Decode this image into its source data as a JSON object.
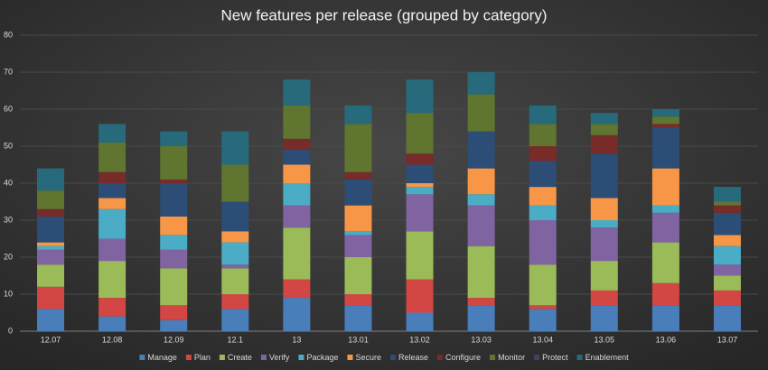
{
  "chart_data": {
    "type": "stacked_bar",
    "title": "New features per release (grouped by category)",
    "categories": [
      "12.07",
      "12.08",
      "12.09",
      "12.1",
      "13",
      "13.01",
      "13.02",
      "13.03",
      "13.04",
      "13.05",
      "13.06",
      "13.07"
    ],
    "series": [
      {
        "name": "Manage",
        "color": "#4a7ebb",
        "values": [
          6,
          4,
          3,
          6,
          9,
          7,
          5,
          7,
          6,
          7,
          7,
          7
        ]
      },
      {
        "name": "Plan",
        "color": "#d24643",
        "values": [
          6,
          5,
          4,
          4,
          5,
          3,
          9,
          2,
          1,
          4,
          6,
          4
        ]
      },
      {
        "name": "Create",
        "color": "#9bbb59",
        "values": [
          6,
          10,
          10,
          7,
          14,
          10,
          13,
          14,
          11,
          8,
          11,
          4
        ]
      },
      {
        "name": "Verify",
        "color": "#8064a2",
        "values": [
          4,
          6,
          5,
          1,
          6,
          6,
          10,
          11,
          12,
          9,
          8,
          3
        ]
      },
      {
        "name": "Package",
        "color": "#4bacc6",
        "values": [
          1,
          8,
          4,
          6,
          6,
          1,
          2,
          3,
          4,
          2,
          2,
          5
        ]
      },
      {
        "name": "Secure",
        "color": "#f79646",
        "values": [
          1,
          3,
          5,
          3,
          5,
          7,
          1,
          7,
          5,
          6,
          10,
          3
        ]
      },
      {
        "name": "Release",
        "color": "#2c4d75",
        "values": [
          7,
          4,
          9,
          8,
          4,
          7,
          5,
          10,
          7,
          12,
          11,
          6
        ]
      },
      {
        "name": "Configure",
        "color": "#772c2a",
        "values": [
          2,
          3,
          1,
          0,
          3,
          2,
          3,
          0,
          4,
          5,
          1,
          2
        ]
      },
      {
        "name": "Monitor",
        "color": "#5f7530",
        "values": [
          5,
          8,
          9,
          10,
          9,
          13,
          11,
          10,
          6,
          3,
          2,
          1
        ]
      },
      {
        "name": "Protect",
        "color": "#4d3b62",
        "values": [
          0,
          0,
          0,
          0,
          0,
          0,
          0,
          0,
          0,
          0,
          0,
          0
        ]
      },
      {
        "name": "Enablement",
        "color": "#276a7c",
        "values": [
          6,
          5,
          4,
          9,
          7,
          5,
          9,
          6,
          5,
          3,
          2,
          4
        ]
      }
    ],
    "ylim": [
      0,
      80
    ],
    "yticks": [
      0,
      10,
      20,
      30,
      40,
      50,
      60,
      70,
      80
    ],
    "grid": true,
    "legend": "bottom"
  }
}
